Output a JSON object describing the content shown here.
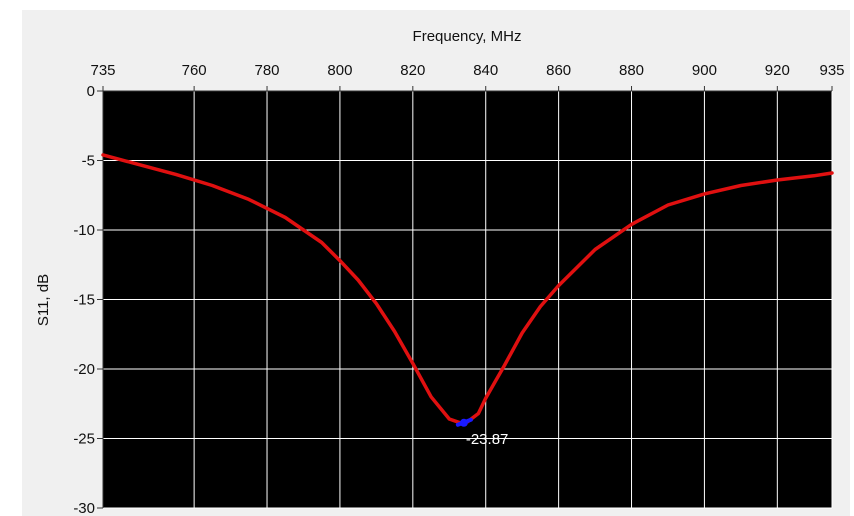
{
  "chart_data": {
    "type": "line",
    "xlabel": "Frequency, MHz",
    "ylabel": "S11, dB",
    "xlim": [
      735,
      935
    ],
    "ylim": [
      -30,
      0
    ],
    "x_ticks": [
      735,
      760,
      780,
      800,
      820,
      840,
      860,
      880,
      900,
      920,
      935
    ],
    "y_ticks": [
      0,
      -5,
      -10,
      -15,
      -20,
      -25,
      -30
    ],
    "x_tick_labels": [
      "735",
      "760",
      "780",
      "800",
      "820",
      "840",
      "860",
      "880",
      "900",
      "920",
      "935"
    ],
    "y_tick_labels": [
      "0",
      "-5",
      "-10",
      "-15",
      "-20",
      "-25",
      "-30"
    ],
    "grid": true,
    "x_axis_position": "top",
    "background_color": "#000000",
    "grid_color": "#ffffff",
    "series": [
      {
        "color": "#e01010",
        "x": [
          735,
          745,
          755,
          765,
          775,
          785,
          795,
          800,
          805,
          810,
          815,
          820,
          825,
          830,
          833,
          835,
          838,
          840,
          845,
          850,
          855,
          860,
          870,
          880,
          890,
          900,
          910,
          920,
          930,
          935
        ],
        "y": [
          -4.6,
          -5.3,
          -6.0,
          -6.8,
          -7.8,
          -9.1,
          -10.9,
          -12.2,
          -13.6,
          -15.3,
          -17.3,
          -19.6,
          -22.0,
          -23.6,
          -23.87,
          -23.8,
          -23.2,
          -22.1,
          -19.8,
          -17.4,
          -15.5,
          -14.0,
          -11.4,
          -9.6,
          -8.2,
          -7.4,
          -6.8,
          -6.4,
          -6.1,
          -5.9
        ]
      }
    ],
    "marker": {
      "x": 834,
      "y": -23.87,
      "label": "-23.87",
      "color": "#1a1aff"
    }
  }
}
